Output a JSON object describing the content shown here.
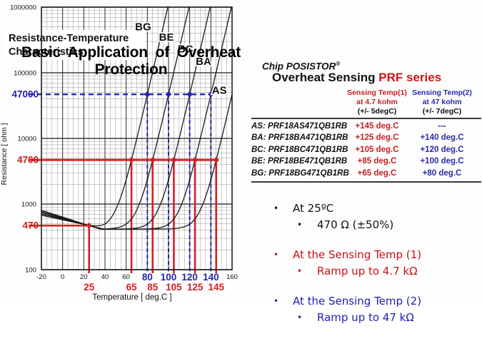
{
  "title": "Basic Application of Overheat Protection",
  "chart_data": {
    "type": "line",
    "title_lines": [
      "Resistance-Temperature",
      "Characteristics"
    ],
    "xlabel": "Temperature [ deg.C ]",
    "ylabel": "Resistance [ ohm ]",
    "xlim": [
      -20,
      160
    ],
    "ylim": [
      100,
      1000000
    ],
    "ylog": true,
    "x_major_step": 20,
    "x_minor_step": 5,
    "x_tick_labels_black": [
      -20,
      0,
      20,
      40,
      60,
      160
    ],
    "x_tick_labels_blue": [
      80,
      100,
      120,
      140
    ],
    "x_tick_labels_red": [
      25,
      65,
      85,
      105,
      125,
      145
    ],
    "y_decade_labels": [
      1000000,
      100000,
      10000,
      1000,
      100
    ],
    "y_special_labels": [
      {
        "value": 47000,
        "color": "#2222ad"
      },
      {
        "value": 4700,
        "color": "#cc1d1d"
      },
      {
        "value": 470,
        "color": "#cc1d1d"
      }
    ],
    "reference_levels": {
      "r25_ohm": 470,
      "sense1_ohm": 4700,
      "sense2_ohm": 47000
    },
    "r25_point": {
      "T": 25,
      "R": 470
    },
    "series": [
      {
        "name": "BG",
        "sense1_degC": 65,
        "sense2_degC": 80,
        "label_at": {
          "T": 76,
          "R": 500000
        }
      },
      {
        "name": "BE",
        "sense1_degC": 85,
        "sense2_degC": 100,
        "label_at": {
          "T": 98,
          "R": 350000
        }
      },
      {
        "name": "BC",
        "sense1_degC": 105,
        "sense2_degC": 120,
        "label_at": {
          "T": 116,
          "R": 230000
        }
      },
      {
        "name": "BA",
        "sense1_degC": 125,
        "sense2_degC": 140,
        "label_at": {
          "T": 133,
          "R": 150000
        }
      },
      {
        "name": "AS",
        "sense1_degC": 145,
        "sense2_degC": null,
        "label_at": {
          "T": 148,
          "R": 54000
        }
      }
    ],
    "curve_model": {
      "rmin": 415,
      "cold_decay_per_degC": 0.0035,
      "rise_degC_per_decade": 14.5
    },
    "colors": {
      "red": "#d32020",
      "blue": "#2424b4",
      "curve": "#1a1a1a",
      "grid_minor": "#8a8a8a",
      "grid_major": "#2b2b2b",
      "axis_text": "#111111"
    }
  },
  "panel": {
    "brand_line": "Chip POSISTOR",
    "registered_mark": "®",
    "heading_black": "Overheat Sensing ",
    "heading_red": "PRF series",
    "col1_header": [
      "Sensing Temp(1)",
      "at 4.7 kohm",
      "(+/- 5degC)"
    ],
    "col2_header": [
      "Sensing Temp(2)",
      "at 47 kohm",
      "(+/- 7degC)"
    ],
    "rows": [
      {
        "part": "AS: PRF18AS471QB1RB",
        "temp1": "+145 deg.C",
        "temp2": "---"
      },
      {
        "part": "BA: PRF18BA471QB1RB",
        "temp1": "+125 deg.C",
        "temp2": "+140 deg.C"
      },
      {
        "part": "BC: PRF18BC471QB1RB",
        "temp1": "+105 deg.C",
        "temp2": "+120 deg.C"
      },
      {
        "part": "BE: PRF18BE471QB1RB",
        "temp1": "+85 deg.C",
        "temp2": "+100 deg.C"
      },
      {
        "part": "BG: PRF18BG471QB1RB",
        "tem1_note": "",
        "temp1": "+65 deg.C",
        "temp2": "+80 deg.C"
      }
    ]
  },
  "bullets": [
    {
      "bullet": "•",
      "main": "At 25ºC",
      "sub": "470 Ω (±50%)",
      "color_class": "bk"
    },
    {
      "bullet": "•",
      "main": "At the Sensing Temp (1)",
      "sub": "Ramp up to 4.7 kΩ",
      "color_class": "rd"
    },
    {
      "bullet": "•",
      "main": "At the Sensing Temp (2)",
      "sub": "Ramp up to 47 kΩ",
      "color_class": "bl"
    }
  ]
}
